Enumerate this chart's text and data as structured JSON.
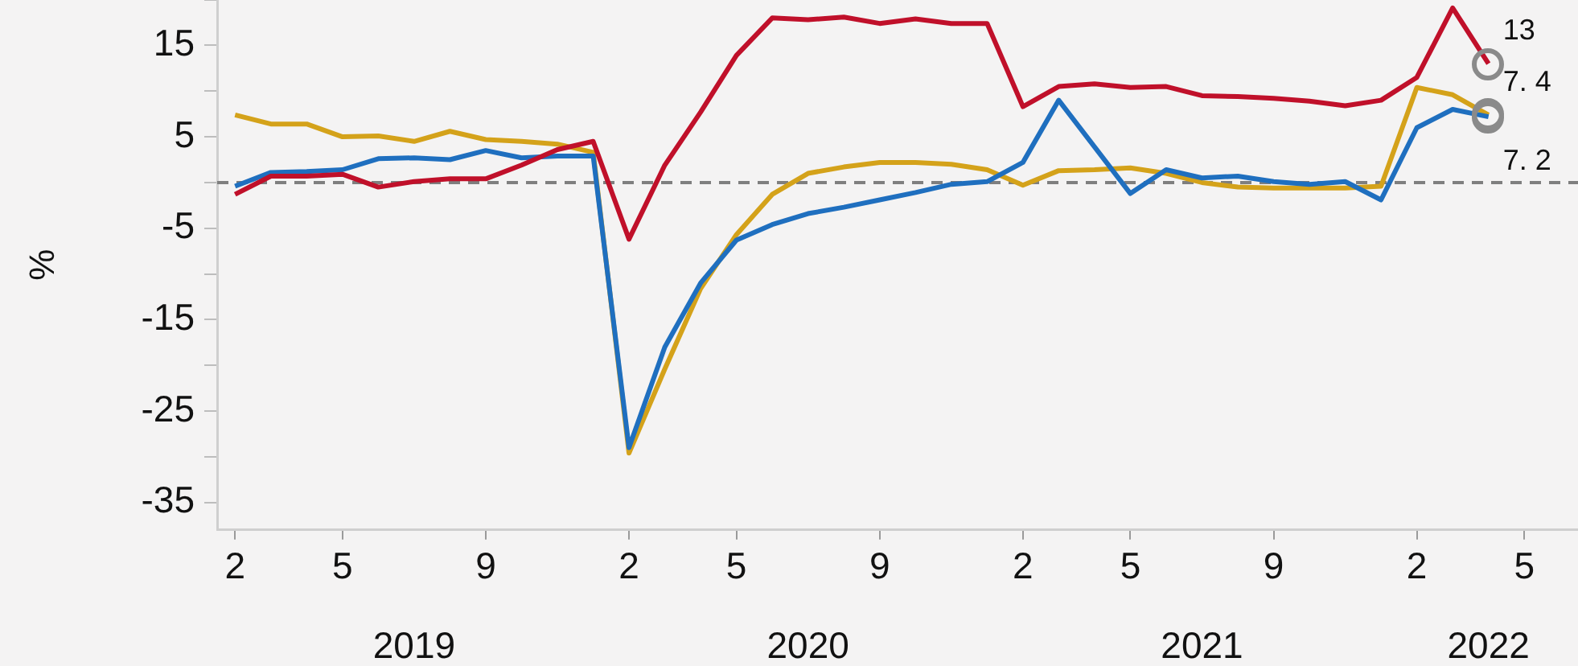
{
  "chart_data": {
    "type": "line",
    "ylabel": "%",
    "categories": [
      "2",
      null,
      null,
      "5",
      null,
      null,
      null,
      "9",
      null,
      null,
      null,
      "2",
      null,
      null,
      "5",
      null,
      null,
      null,
      "9",
      null,
      null,
      null,
      "2",
      null,
      null,
      "5",
      null,
      null,
      null,
      "9",
      null,
      null,
      null,
      "2",
      null,
      null,
      "5",
      null
    ],
    "series": [
      {
        "color": "#c0102a",
        "values": [
          -1.3,
          0.7,
          0.7,
          0.9,
          -0.5,
          0.1,
          0.4,
          0.4,
          1.9,
          3.6,
          4.5,
          -6.2,
          1.9,
          7.7,
          13.9,
          18.0,
          17.8,
          18.1,
          17.4,
          17.9,
          17.4,
          17.4,
          8.3,
          10.5,
          10.8,
          10.4,
          10.5,
          9.5,
          9.4,
          9.2,
          8.9,
          8.4,
          9.0,
          11.5,
          19.1,
          13,
          null,
          null
        ],
        "value_labels": [
          null,
          null,
          null,
          null,
          null,
          null,
          null,
          null,
          null,
          null,
          null,
          null,
          null,
          null,
          null,
          null,
          null,
          null,
          null,
          null,
          null,
          null,
          null,
          null,
          null,
          null,
          null,
          null,
          null,
          null,
          null,
          null,
          null,
          null,
          null,
          "13",
          null,
          null
        ]
      },
      {
        "color": "#1f6fbf",
        "values": [
          -0.4,
          1.1,
          1.2,
          1.4,
          2.6,
          2.7,
          2.5,
          3.5,
          2.7,
          2.9,
          2.9,
          -29,
          -18.0,
          -11.0,
          -6.3,
          -4.6,
          -3.4,
          -2.7,
          -1.9,
          -1.1,
          -0.2,
          0.1,
          2.2,
          9.0,
          3.9,
          -1.2,
          1.4,
          0.5,
          0.7,
          0.1,
          -0.2,
          0.1,
          -1.9,
          6.0,
          8.0,
          7.2,
          null,
          null
        ],
        "value_labels": [
          null,
          null,
          null,
          null,
          null,
          null,
          null,
          null,
          null,
          null,
          null,
          null,
          null,
          null,
          null,
          null,
          null,
          null,
          null,
          null,
          null,
          null,
          null,
          null,
          null,
          null,
          null,
          null,
          null,
          null,
          null,
          null,
          null,
          null,
          null,
          "7. 2",
          null,
          null
        ]
      },
      {
        "color": "#d4a21a",
        "values": [
          7.4,
          6.4,
          6.4,
          5.0,
          5.1,
          4.5,
          5.6,
          4.7,
          4.5,
          4.2,
          3.3,
          -29.6,
          -20.4,
          -11.6,
          -5.7,
          -1.3,
          1.0,
          1.7,
          2.2,
          2.2,
          2.0,
          1.4,
          -0.3,
          1.3,
          1.4,
          1.6,
          1.0,
          0,
          -0.5,
          -0.6,
          -0.6,
          -0.6,
          -0.4,
          10.4,
          9.6,
          7.4,
          null,
          null
        ],
        "value_labels": [
          null,
          null,
          null,
          null,
          null,
          null,
          null,
          null,
          null,
          null,
          null,
          null,
          null,
          null,
          null,
          null,
          null,
          null,
          null,
          null,
          null,
          null,
          null,
          null,
          null,
          null,
          null,
          null,
          null,
          null,
          null,
          null,
          null,
          null,
          null,
          "7. 4",
          null,
          null
        ]
      }
    ],
    "ylim": [
      -38,
      20
    ],
    "yticks": [
      {
        "value": 20,
        "label": null
      },
      15,
      {
        "value": 10,
        "label": null
      },
      5,
      {
        "value": 0,
        "label": null
      },
      -5,
      {
        "value": -10,
        "label": null
      },
      -15,
      {
        "value": -20,
        "label": null
      },
      -25,
      {
        "value": -30,
        "label": null
      },
      -35
    ],
    "ref_lines": [
      {
        "axis": "y",
        "value": 0,
        "color": "#7f7f7f",
        "line_style": "dashed"
      }
    ],
    "annotations": [
      "2019",
      "2020",
      "2021",
      "2022"
    ],
    "grid": false,
    "legend": false
  }
}
